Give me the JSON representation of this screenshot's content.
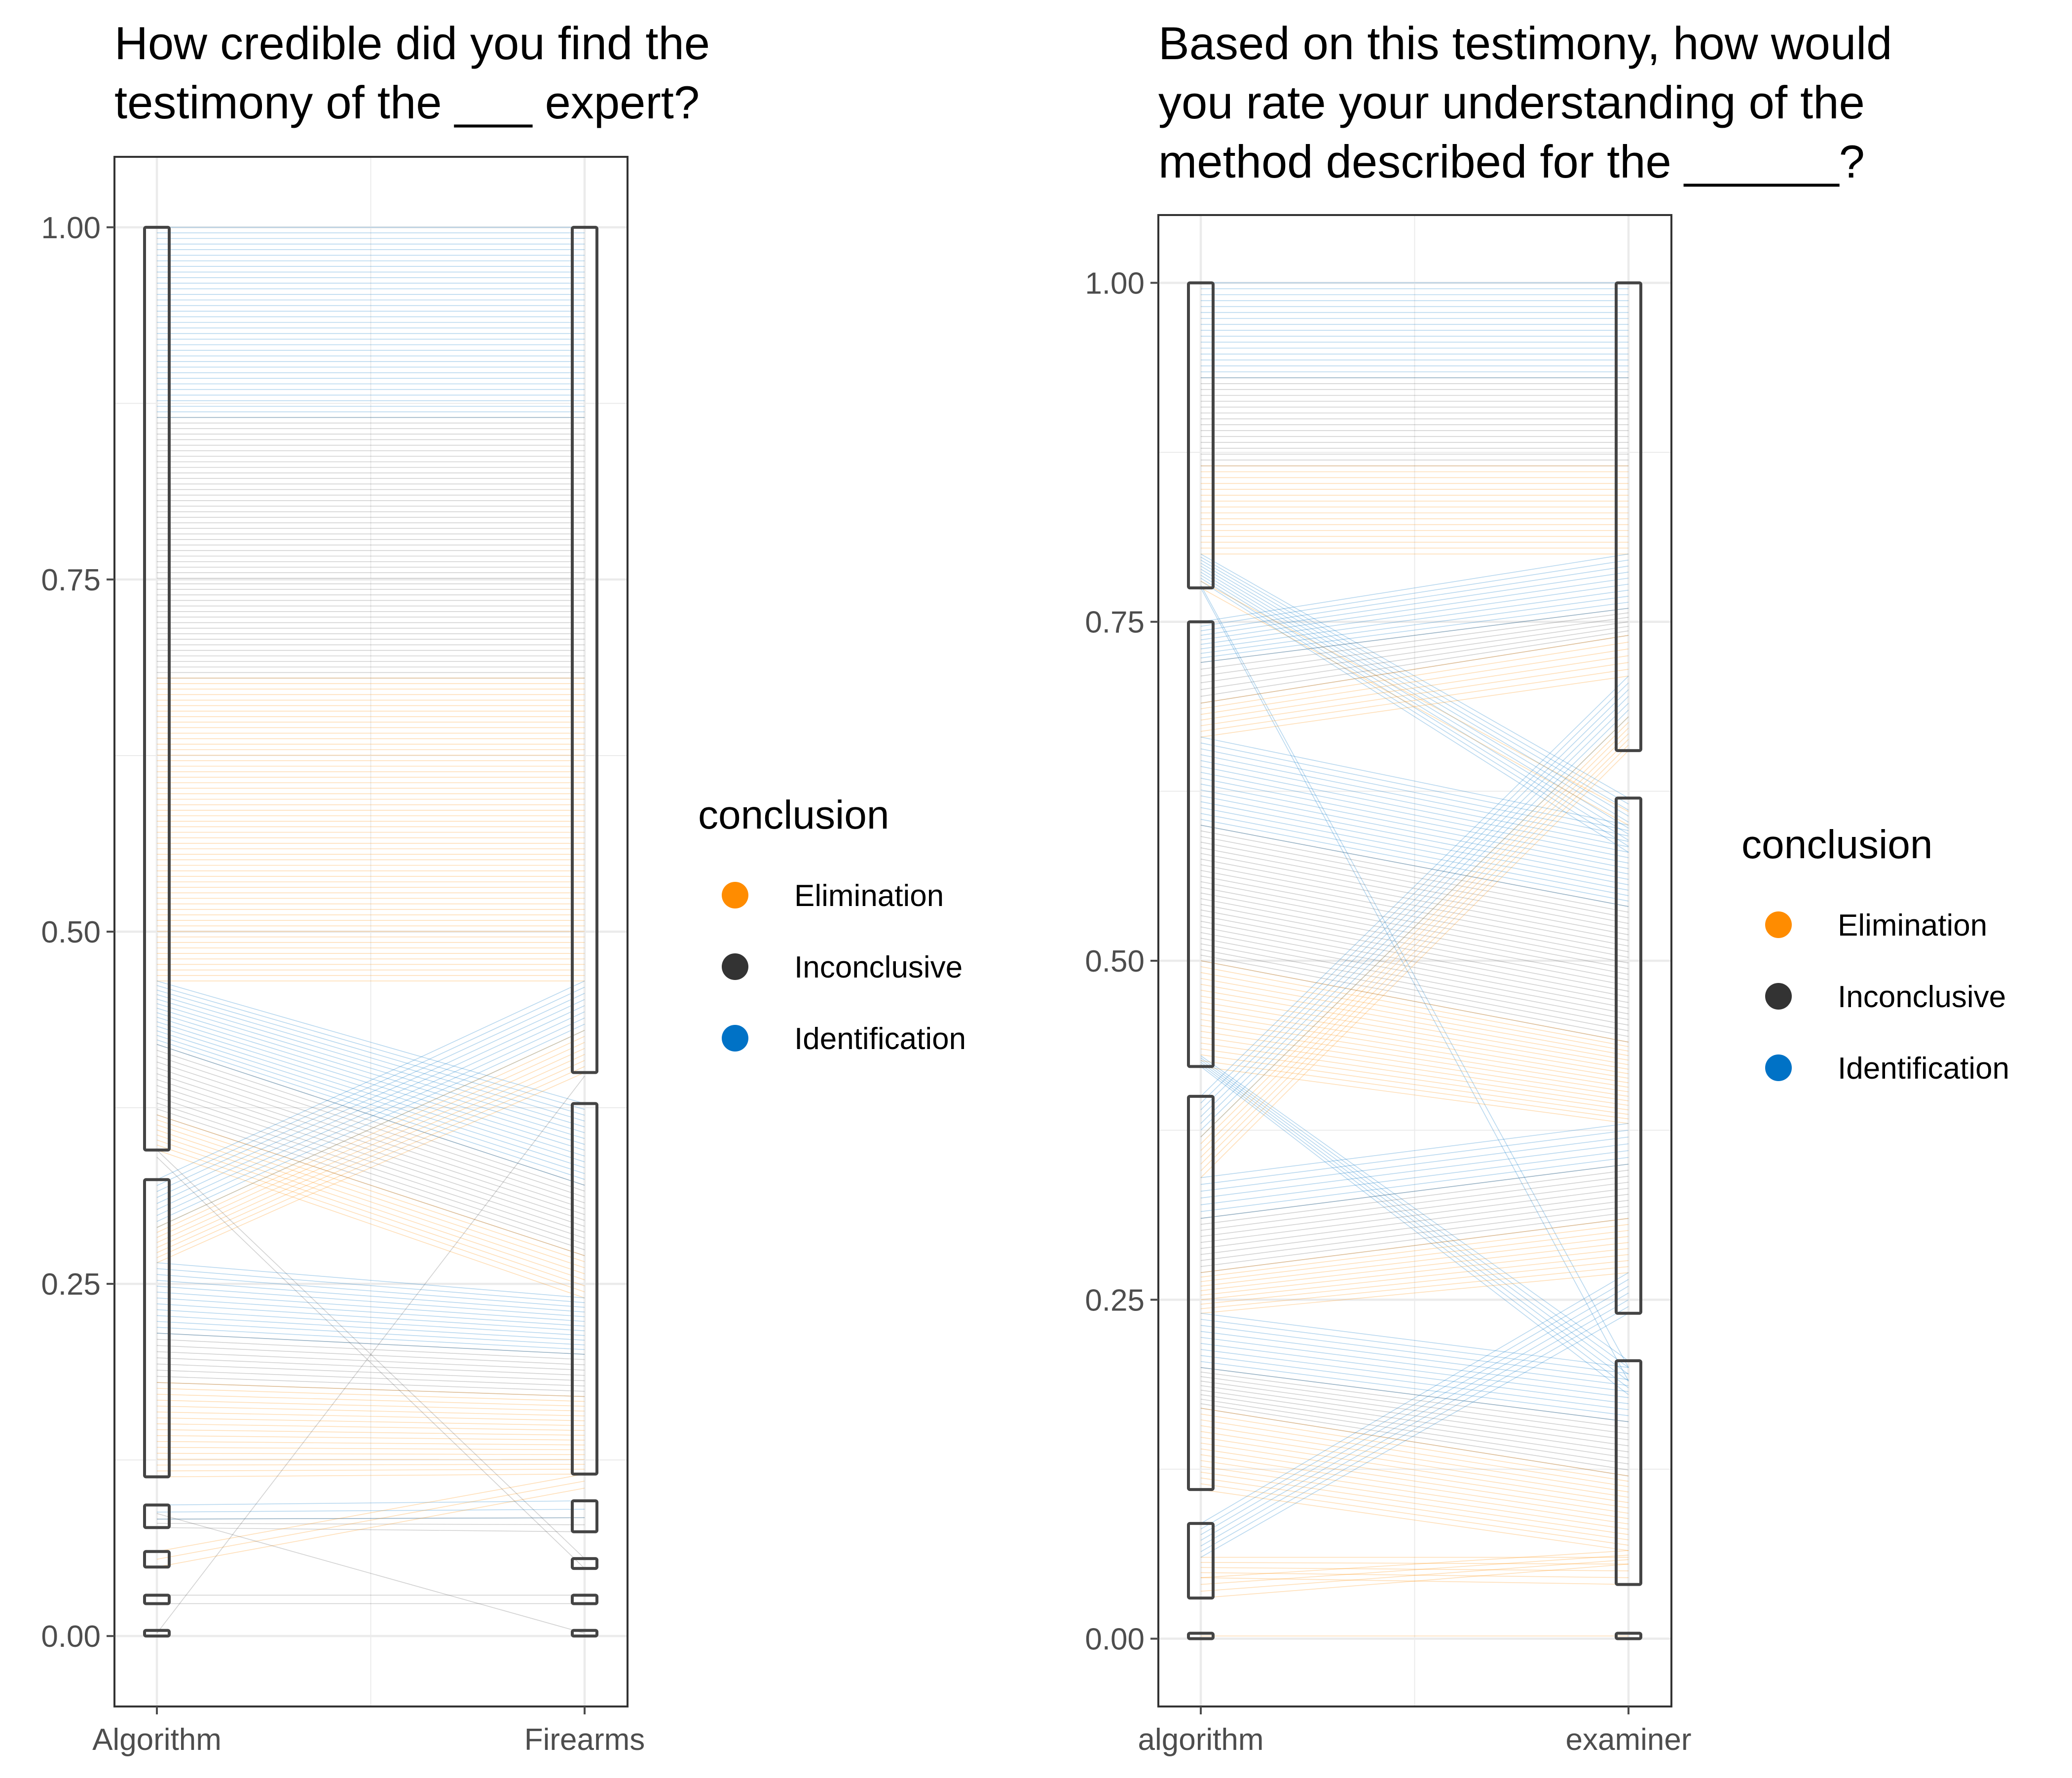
{
  "colors": {
    "elimination": "#ff8c00",
    "inconclusive": "#333333",
    "identification": "#0072c6",
    "grid": "#ebebeb",
    "panel_border": "#333333",
    "box_stroke": "#444444",
    "tick_text": "#4d4d4d"
  },
  "chart_data": [
    {
      "type": "parallel-sets",
      "title": "How credible did you find the\ntestimony of the ___ expert?",
      "xlabel": "",
      "ylabel": "",
      "ylim": [
        -0.05,
        1.05
      ],
      "yticks": [
        "0.00",
        "0.25",
        "0.50",
        "0.75",
        "1.00"
      ],
      "categories": [
        "Algorithm",
        "Firearms"
      ],
      "grid": true,
      "legend": {
        "title": "conclusion",
        "position": "right",
        "entries": [
          {
            "label": "Elimination",
            "color": "#ff8c00"
          },
          {
            "label": "Inconclusive",
            "color": "#333333"
          },
          {
            "label": "Identification",
            "color": "#0072c6"
          }
        ]
      },
      "strata": {
        "Algorithm": [
          [
            0.0,
            0.004
          ],
          [
            0.023,
            0.029
          ],
          [
            0.049,
            0.06
          ],
          [
            0.077,
            0.093
          ],
          [
            0.113,
            0.324
          ],
          [
            0.345,
            1.0
          ]
        ],
        "Firearms": [
          [
            0.0,
            0.004
          ],
          [
            0.023,
            0.029
          ],
          [
            0.048,
            0.055
          ],
          [
            0.074,
            0.096
          ],
          [
            0.115,
            0.378
          ],
          [
            0.4,
            1.0
          ]
        ]
      },
      "flows": [
        {
          "conclusion": "Identification",
          "from": [
            0.865,
            1.0
          ],
          "to": [
            0.865,
            1.0
          ]
        },
        {
          "conclusion": "Inconclusive",
          "from": [
            0.68,
            0.865
          ],
          "to": [
            0.68,
            0.865
          ]
        },
        {
          "conclusion": "Elimination",
          "from": [
            0.465,
            0.68
          ],
          "to": [
            0.465,
            0.68
          ]
        },
        {
          "conclusion": "Identification",
          "from": [
            0.42,
            0.465
          ],
          "to": [
            0.32,
            0.378
          ]
        },
        {
          "conclusion": "Inconclusive",
          "from": [
            0.37,
            0.42
          ],
          "to": [
            0.27,
            0.32
          ]
        },
        {
          "conclusion": "Elimination",
          "from": [
            0.345,
            0.37
          ],
          "to": [
            0.24,
            0.27
          ]
        },
        {
          "conclusion": "Identification",
          "from": [
            0.29,
            0.324
          ],
          "to": [
            0.43,
            0.465
          ]
        },
        {
          "conclusion": "Elimination",
          "from": [
            0.265,
            0.29
          ],
          "to": [
            0.4,
            0.43
          ]
        },
        {
          "conclusion": "Identification",
          "from": [
            0.215,
            0.265
          ],
          "to": [
            0.2,
            0.24
          ]
        },
        {
          "conclusion": "Inconclusive",
          "from": [
            0.18,
            0.215
          ],
          "to": [
            0.17,
            0.2
          ]
        },
        {
          "conclusion": "Elimination",
          "from": [
            0.113,
            0.18
          ],
          "to": [
            0.115,
            0.17
          ]
        },
        {
          "conclusion": "Identification",
          "from": [
            0.083,
            0.093
          ],
          "to": [
            0.084,
            0.096
          ]
        },
        {
          "conclusion": "Inconclusive",
          "from": [
            0.077,
            0.083
          ],
          "to": [
            0.074,
            0.084
          ]
        },
        {
          "conclusion": "Elimination",
          "from": [
            0.049,
            0.06
          ],
          "to": [
            0.105,
            0.115
          ]
        },
        {
          "conclusion": "Inconclusive",
          "from": [
            0.023,
            0.029
          ],
          "to": [
            0.023,
            0.029
          ]
        },
        {
          "conclusion": "Inconclusive",
          "from": [
            0.0,
            0.004
          ],
          "to": [
            0.395,
            0.4
          ]
        },
        {
          "conclusion": "Inconclusive",
          "from": [
            0.34,
            0.345
          ],
          "to": [
            0.048,
            0.055
          ]
        },
        {
          "conclusion": "Inconclusive",
          "from": [
            0.086,
            0.088
          ],
          "to": [
            0.0,
            0.004
          ]
        }
      ]
    },
    {
      "type": "parallel-sets",
      "title": "Based on this testimony, how would\nyou rate your understanding of the\nmethod described for the ______?",
      "xlabel": "",
      "ylabel": "",
      "ylim": [
        -0.05,
        1.05
      ],
      "yticks": [
        "0.00",
        "0.25",
        "0.50",
        "0.75",
        "1.00"
      ],
      "categories": [
        "algorithm",
        "examiner"
      ],
      "grid": true,
      "legend": {
        "title": "conclusion",
        "position": "right",
        "entries": [
          {
            "label": "Elimination",
            "color": "#ff8c00"
          },
          {
            "label": "Inconclusive",
            "color": "#333333"
          },
          {
            "label": "Identification",
            "color": "#0072c6"
          }
        ]
      },
      "strata": {
        "algorithm": [
          [
            0.0,
            0.004
          ],
          [
            0.03,
            0.085
          ],
          [
            0.11,
            0.4
          ],
          [
            0.422,
            0.75
          ],
          [
            0.775,
            1.0
          ]
        ],
        "examiner": [
          [
            0.0,
            0.004
          ],
          [
            0.04,
            0.205
          ],
          [
            0.24,
            0.62
          ],
          [
            0.655,
            1.0
          ]
        ]
      },
      "flows": [
        {
          "conclusion": "Identification",
          "from": [
            0.93,
            1.0
          ],
          "to": [
            0.93,
            1.0
          ]
        },
        {
          "conclusion": "Inconclusive",
          "from": [
            0.865,
            0.93
          ],
          "to": [
            0.865,
            0.93
          ]
        },
        {
          "conclusion": "Elimination",
          "from": [
            0.8,
            0.865
          ],
          "to": [
            0.8,
            0.865
          ]
        },
        {
          "conclusion": "Identification",
          "from": [
            0.78,
            0.8
          ],
          "to": [
            0.58,
            0.62
          ]
        },
        {
          "conclusion": "Elimination",
          "from": [
            0.775,
            0.78
          ],
          "to": [
            0.6,
            0.61
          ]
        },
        {
          "conclusion": "Identification",
          "from": [
            0.775,
            0.777
          ],
          "to": [
            0.19,
            0.2
          ]
        },
        {
          "conclusion": "Identification",
          "from": [
            0.72,
            0.75
          ],
          "to": [
            0.76,
            0.8
          ]
        },
        {
          "conclusion": "Inconclusive",
          "from": [
            0.69,
            0.72
          ],
          "to": [
            0.74,
            0.76
          ]
        },
        {
          "conclusion": "Elimination",
          "from": [
            0.665,
            0.69
          ],
          "to": [
            0.71,
            0.74
          ]
        },
        {
          "conclusion": "Identification",
          "from": [
            0.6,
            0.665
          ],
          "to": [
            0.54,
            0.6
          ]
        },
        {
          "conclusion": "Inconclusive",
          "from": [
            0.5,
            0.6
          ],
          "to": [
            0.44,
            0.54
          ]
        },
        {
          "conclusion": "Elimination",
          "from": [
            0.422,
            0.5
          ],
          "to": [
            0.38,
            0.44
          ]
        },
        {
          "conclusion": "Identification",
          "from": [
            0.422,
            0.43
          ],
          "to": [
            0.18,
            0.205
          ]
        },
        {
          "conclusion": "Identification",
          "from": [
            0.37,
            0.4
          ],
          "to": [
            0.68,
            0.71
          ]
        },
        {
          "conclusion": "Elimination",
          "from": [
            0.34,
            0.37
          ],
          "to": [
            0.655,
            0.68
          ]
        },
        {
          "conclusion": "Identification",
          "from": [
            0.31,
            0.34
          ],
          "to": [
            0.35,
            0.38
          ]
        },
        {
          "conclusion": "Inconclusive",
          "from": [
            0.27,
            0.31
          ],
          "to": [
            0.31,
            0.35
          ]
        },
        {
          "conclusion": "Elimination",
          "from": [
            0.24,
            0.27
          ],
          "to": [
            0.27,
            0.31
          ]
        },
        {
          "conclusion": "Identification",
          "from": [
            0.2,
            0.24
          ],
          "to": [
            0.16,
            0.2
          ]
        },
        {
          "conclusion": "Inconclusive",
          "from": [
            0.17,
            0.2
          ],
          "to": [
            0.12,
            0.16
          ]
        },
        {
          "conclusion": "Elimination",
          "from": [
            0.11,
            0.17
          ],
          "to": [
            0.065,
            0.12
          ]
        },
        {
          "conclusion": "Identification",
          "from": [
            0.06,
            0.085
          ],
          "to": [
            0.24,
            0.27
          ]
        },
        {
          "conclusion": "Elimination",
          "from": [
            0.045,
            0.06
          ],
          "to": [
            0.04,
            0.06
          ]
        },
        {
          "conclusion": "Elimination",
          "from": [
            0.03,
            0.045
          ],
          "to": [
            0.055,
            0.065
          ]
        },
        {
          "conclusion": "Elimination",
          "from": [
            0.0,
            0.004
          ],
          "to": [
            0.0,
            0.004
          ]
        }
      ]
    }
  ]
}
